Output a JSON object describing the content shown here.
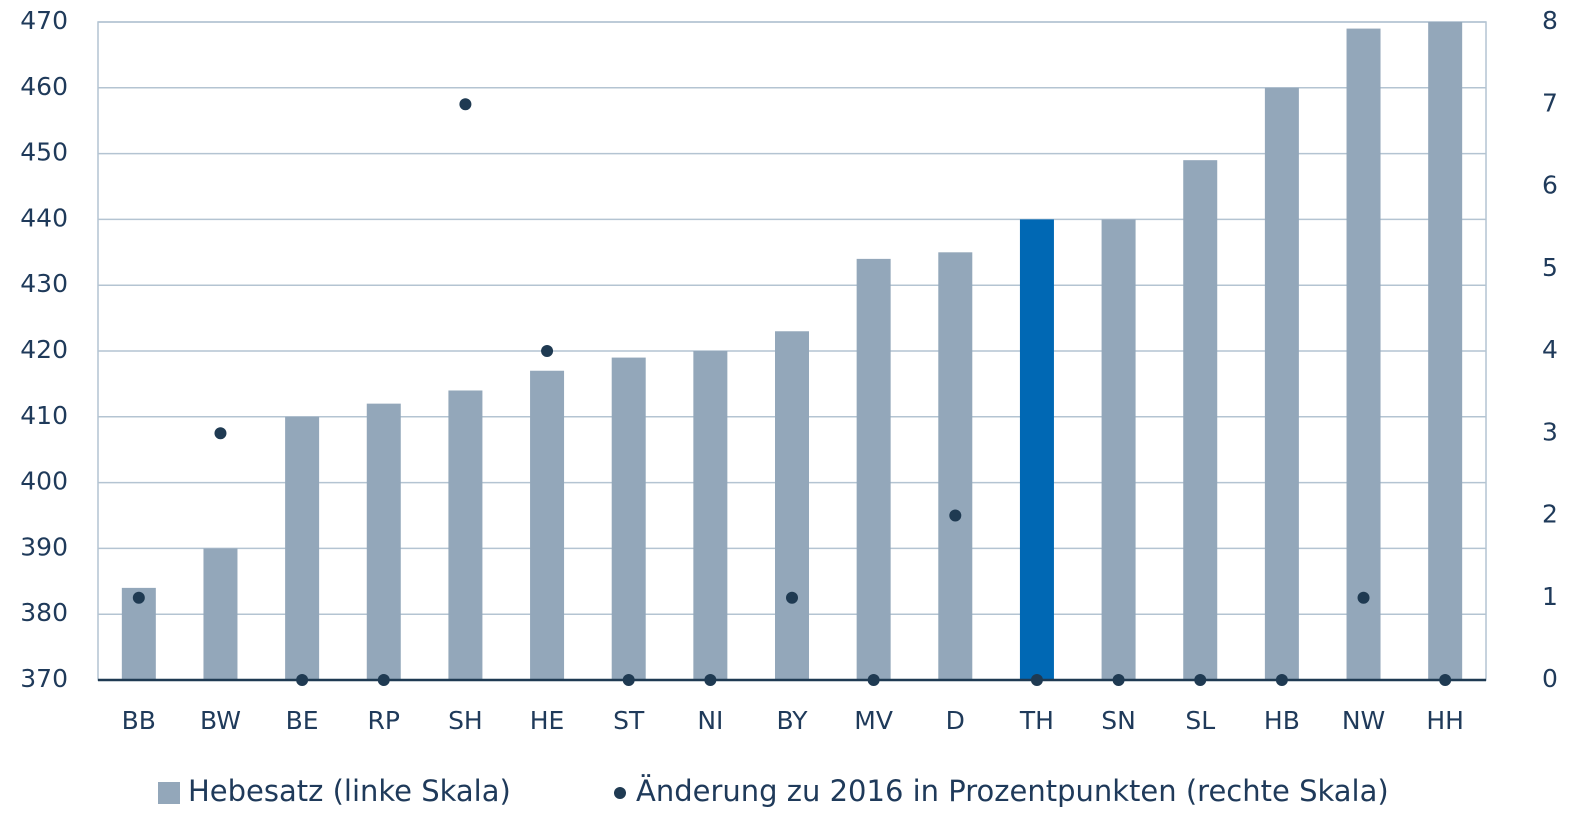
{
  "chart_data": {
    "type": "bar",
    "categories": [
      "BB",
      "BW",
      "BE",
      "RP",
      "SH",
      "HE",
      "ST",
      "NI",
      "BY",
      "MV",
      "D",
      "TH",
      "SN",
      "SL",
      "HB",
      "NW",
      "HH"
    ],
    "series": [
      {
        "name": "Hebesatz (linke Skala)",
        "type": "bar",
        "color": "#93a7ba",
        "colors": [
          "#93a7ba",
          "#93a7ba",
          "#93a7ba",
          "#93a7ba",
          "#93a7ba",
          "#93a7ba",
          "#93a7ba",
          "#93a7ba",
          "#93a7ba",
          "#93a7ba",
          "#93a7ba",
          "#0068b4",
          "#93a7ba",
          "#93a7ba",
          "#93a7ba",
          "#93a7ba",
          "#93a7ba"
        ],
        "values": [
          384,
          390,
          410,
          412,
          414,
          417,
          419,
          420,
          423,
          434,
          435,
          440,
          440,
          449,
          460,
          469,
          470
        ]
      },
      {
        "name": "Änderung zu 2016 in Prozentpunkten (rechte Skala)",
        "type": "scatter",
        "axis": "y2",
        "color": "#1f3a52",
        "values": [
          1,
          3,
          0,
          0,
          7,
          4,
          0,
          0,
          1,
          0,
          2,
          0,
          0,
          0,
          0,
          1,
          0
        ]
      }
    ],
    "ylim": [
      370,
      470
    ],
    "yticks": [
      370,
      380,
      390,
      400,
      410,
      420,
      430,
      440,
      450,
      460,
      470
    ],
    "y2lim": [
      0,
      8
    ],
    "y2ticks": [
      0,
      1,
      2,
      3,
      4,
      5,
      6,
      7,
      8
    ],
    "grid": true
  }
}
